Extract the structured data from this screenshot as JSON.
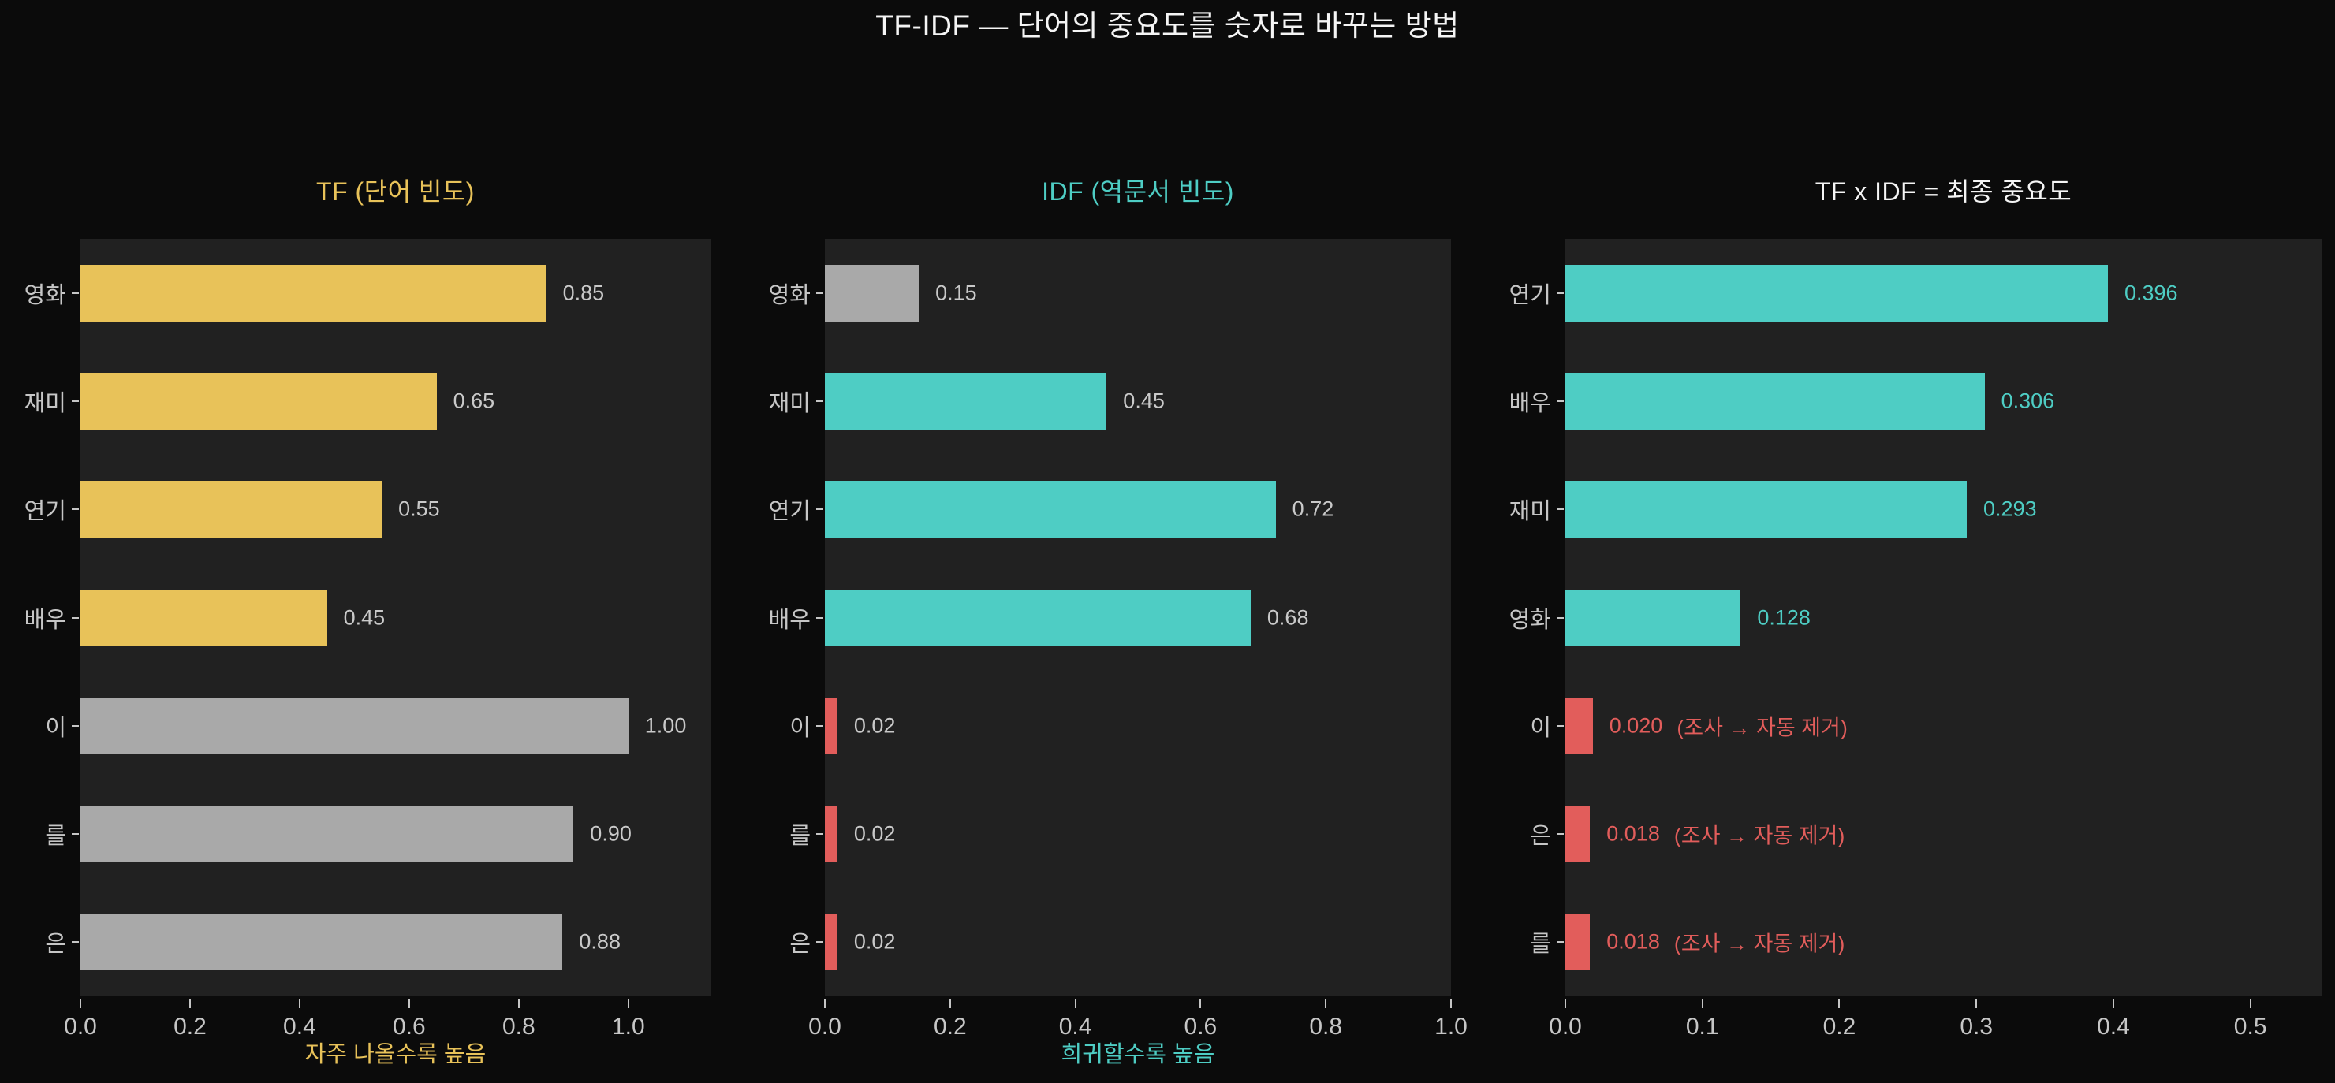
{
  "main_title": "TF-IDF — 단어의 중요도를 숫자로 바꾸는 방법",
  "colors": {
    "background": "#0b0b0b",
    "panel": "#212121",
    "axis_text": "#c6c6c6",
    "value_text": "#c9c9c9",
    "gold": "#e8c259",
    "gray_bar": "#a9a9a9",
    "teal": "#4ecdc4",
    "red": "#e25d5b",
    "title_white": "#f5f5f5"
  },
  "chart_data": [
    {
      "type": "bar",
      "orientation": "horizontal",
      "title": "TF (단어 빈도)",
      "title_color": "#e8c259",
      "categories": [
        "영화",
        "재미",
        "연기",
        "배우",
        "이",
        "를",
        "은"
      ],
      "values": [
        0.85,
        0.65,
        0.55,
        0.45,
        1.0,
        0.9,
        0.88
      ],
      "value_labels": [
        "0.85",
        "0.65",
        "0.55",
        "0.45",
        "1.00",
        "0.90",
        "0.88"
      ],
      "annotations": [
        null,
        null,
        null,
        null,
        null,
        null,
        null
      ],
      "bar_colors": [
        "#e8c259",
        "#e8c259",
        "#e8c259",
        "#e8c259",
        "#a9a9a9",
        "#a9a9a9",
        "#a9a9a9"
      ],
      "value_label_colors": [
        "#c9c9c9",
        "#c9c9c9",
        "#c9c9c9",
        "#c9c9c9",
        "#c9c9c9",
        "#c9c9c9",
        "#c9c9c9"
      ],
      "xticks": [
        "0.0",
        "0.2",
        "0.4",
        "0.6",
        "0.8",
        "1.0"
      ],
      "xtick_values": [
        0,
        0.2,
        0.4,
        0.6,
        0.8,
        1.0
      ],
      "xlim": [
        0,
        1.15
      ],
      "xlabel": "자주 나올수록 높음",
      "xlabel_color": "#e8c259",
      "grid": false,
      "legend": null
    },
    {
      "type": "bar",
      "orientation": "horizontal",
      "title": "IDF (역문서 빈도)",
      "title_color": "#4ecdc4",
      "categories": [
        "영화",
        "재미",
        "연기",
        "배우",
        "이",
        "를",
        "은"
      ],
      "values": [
        0.15,
        0.45,
        0.72,
        0.68,
        0.02,
        0.02,
        0.02
      ],
      "value_labels": [
        "0.15",
        "0.45",
        "0.72",
        "0.68",
        "0.02",
        "0.02",
        "0.02"
      ],
      "annotations": [
        null,
        null,
        null,
        null,
        null,
        null,
        null
      ],
      "bar_colors": [
        "#a9a9a9",
        "#4ecdc4",
        "#4ecdc4",
        "#4ecdc4",
        "#e25d5b",
        "#e25d5b",
        "#e25d5b"
      ],
      "value_label_colors": [
        "#c9c9c9",
        "#c9c9c9",
        "#c9c9c9",
        "#c9c9c9",
        "#c9c9c9",
        "#c9c9c9",
        "#c9c9c9"
      ],
      "xticks": [
        "0.0",
        "0.2",
        "0.4",
        "0.6",
        "0.8",
        "1.0"
      ],
      "xtick_values": [
        0,
        0.2,
        0.4,
        0.6,
        0.8,
        1.0
      ],
      "xlim": [
        0,
        1.0
      ],
      "xlabel": "희귀할수록 높음",
      "xlabel_color": "#4ecdc4",
      "grid": false,
      "legend": null
    },
    {
      "type": "bar",
      "orientation": "horizontal",
      "title": "TF x IDF = 최종 중요도",
      "title_color": "#f5f5f5",
      "categories": [
        "연기",
        "배우",
        "재미",
        "영화",
        "이",
        "은",
        "를"
      ],
      "values": [
        0.396,
        0.306,
        0.293,
        0.128,
        0.02,
        0.018,
        0.018
      ],
      "value_labels": [
        "0.396",
        "0.306",
        "0.293",
        "0.128",
        "0.020",
        "0.018",
        "0.018"
      ],
      "annotations": [
        null,
        null,
        null,
        null,
        "(조사 → 자동 제거)",
        "(조사 → 자동 제거)",
        "(조사 → 자동 제거)"
      ],
      "bar_colors": [
        "#4ecdc4",
        "#4ecdc4",
        "#4ecdc4",
        "#4ecdc4",
        "#e25d5b",
        "#e25d5b",
        "#e25d5b"
      ],
      "value_label_colors": [
        "#4ecdc4",
        "#4ecdc4",
        "#4ecdc4",
        "#4ecdc4",
        "#e25d5b",
        "#e25d5b",
        "#e25d5b"
      ],
      "xticks": [
        "0.0",
        "0.1",
        "0.2",
        "0.3",
        "0.4",
        "0.5"
      ],
      "xtick_values": [
        0,
        0.1,
        0.2,
        0.3,
        0.4,
        0.5
      ],
      "xlim": [
        0,
        0.552
      ],
      "xlabel": "",
      "xlabel_color": "#4ecdc4",
      "grid": false,
      "legend": null
    }
  ]
}
